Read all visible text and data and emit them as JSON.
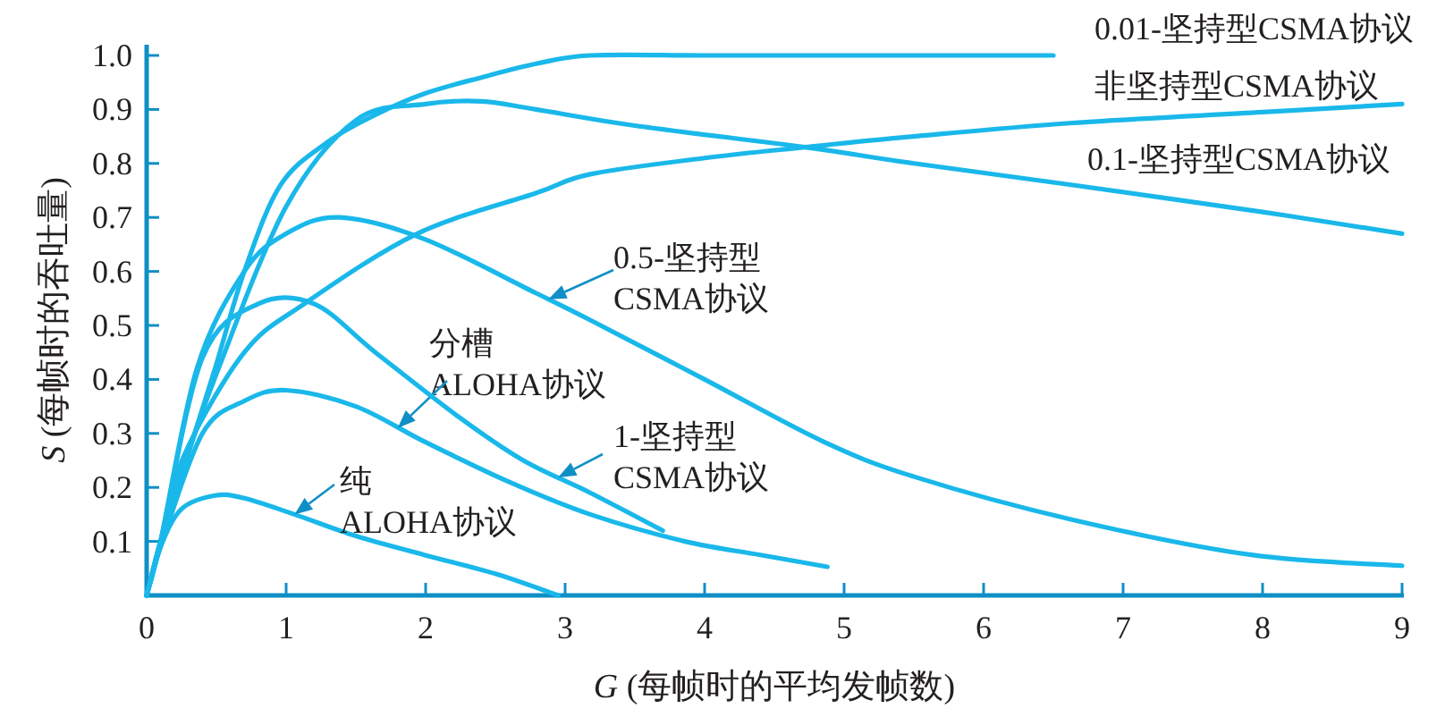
{
  "chart_data": {
    "type": "line",
    "xlabel": "*G* (每帧时的平均发帧数)",
    "ylabel": "*S* (每帧时的吞吐量)",
    "xlim": [
      0,
      9
    ],
    "ylim": [
      0,
      1.02
    ],
    "xticks": [
      0,
      1,
      2,
      3,
      4,
      5,
      6,
      7,
      8,
      9
    ],
    "yticks": [
      {
        "value": 0.1,
        "label": "0.1"
      },
      {
        "value": 0.2,
        "label": "0.2"
      },
      {
        "value": 0.3,
        "label": "0.3"
      },
      {
        "value": 0.4,
        "label": "0.4"
      },
      {
        "value": 0.5,
        "label": "0.5"
      },
      {
        "value": 0.6,
        "label": "0.6"
      },
      {
        "value": 0.7,
        "label": "0.7"
      },
      {
        "value": 0.8,
        "label": "0.8"
      },
      {
        "value": 0.9,
        "label": "0.9"
      },
      {
        "value": 1,
        "label": "1.0"
      }
    ],
    "grid": false,
    "marker": "none",
    "line_style": "solid",
    "series": [
      {
        "name": "0.01-坚持型CSMA协议",
        "color": "#1ab8ea",
        "x": [
          0,
          0.1,
          0.27,
          0.49,
          0.7,
          0.96,
          1.3,
          1.64,
          2.0,
          2.41,
          2.8,
          3.18,
          4,
          5,
          6.5
        ],
        "values": [
          0,
          0.1,
          0.24,
          0.42,
          0.6,
          0.76,
          0.84,
          0.89,
          0.93,
          0.96,
          0.985,
          1.0,
          1.0,
          1.0,
          1.0
        ]
      },
      {
        "name": "非坚持型CSMA协议",
        "color": "#1ab8ea",
        "x": [
          0,
          0.1,
          0.27,
          0.7,
          1.13,
          1.94,
          2.79,
          3.18,
          4,
          4.72,
          5.5,
          6.64,
          8,
          9
        ],
        "values": [
          0,
          0.1,
          0.26,
          0.45,
          0.54,
          0.67,
          0.745,
          0.78,
          0.81,
          0.83,
          0.85,
          0.875,
          0.895,
          0.91
        ]
      },
      {
        "name": "0.1-坚持型CSMA协议",
        "color": "#1ab8ea",
        "x": [
          0,
          0.1,
          0.27,
          0.5,
          1.0,
          1.5,
          2.0,
          2.4,
          2.79,
          3.5,
          4.72,
          5.5,
          6.64,
          8,
          9
        ],
        "values": [
          0,
          0.1,
          0.24,
          0.41,
          0.72,
          0.88,
          0.91,
          0.915,
          0.9,
          0.87,
          0.83,
          0.8,
          0.76,
          0.71,
          0.67
        ]
      },
      {
        "name": "0.5-坚持型\nCSMA协议",
        "color": "#1ab8ea",
        "x": [
          0,
          0.1,
          0.36,
          0.7,
          1.0,
          1.38,
          1.99,
          2.79,
          3.18,
          4,
          4.85,
          5.5,
          6.64,
          7.92,
          9
        ],
        "values": [
          0,
          0.1,
          0.42,
          0.6,
          0.67,
          0.7,
          0.66,
          0.56,
          0.51,
          0.4,
          0.285,
          0.22,
          0.14,
          0.075,
          0.055
        ]
      },
      {
        "name": "分槽\nALOHA协议",
        "color": "#1ab8ea",
        "x": [
          0,
          0.1,
          0.4,
          0.7,
          1.0,
          1.5,
          1.99,
          2.6,
          3.18,
          3.86,
          4.4,
          4.88
        ],
        "values": [
          0,
          0.09,
          0.3,
          0.36,
          0.38,
          0.35,
          0.285,
          0.21,
          0.15,
          0.1,
          0.075,
          0.053
        ]
      },
      {
        "name": "1-坚持型\nCSMA协议",
        "color": "#1ab8ea",
        "x": [
          0,
          0.1,
          0.4,
          0.8,
          1.2,
          1.64,
          2.24,
          2.7,
          3.18,
          3.7
        ],
        "values": [
          0,
          0.1,
          0.44,
          0.54,
          0.54,
          0.45,
          0.33,
          0.25,
          0.19,
          0.12
        ]
      },
      {
        "name": "纯\nALOHA协议",
        "color": "#1ab8ea",
        "x": [
          0,
          0.1,
          0.25,
          0.49,
          0.7,
          1.06,
          1.5,
          1.99,
          2.5,
          2.95
        ],
        "values": [
          0,
          0.09,
          0.16,
          0.185,
          0.18,
          0.15,
          0.11,
          0.075,
          0.04,
          0
        ]
      }
    ]
  }
}
